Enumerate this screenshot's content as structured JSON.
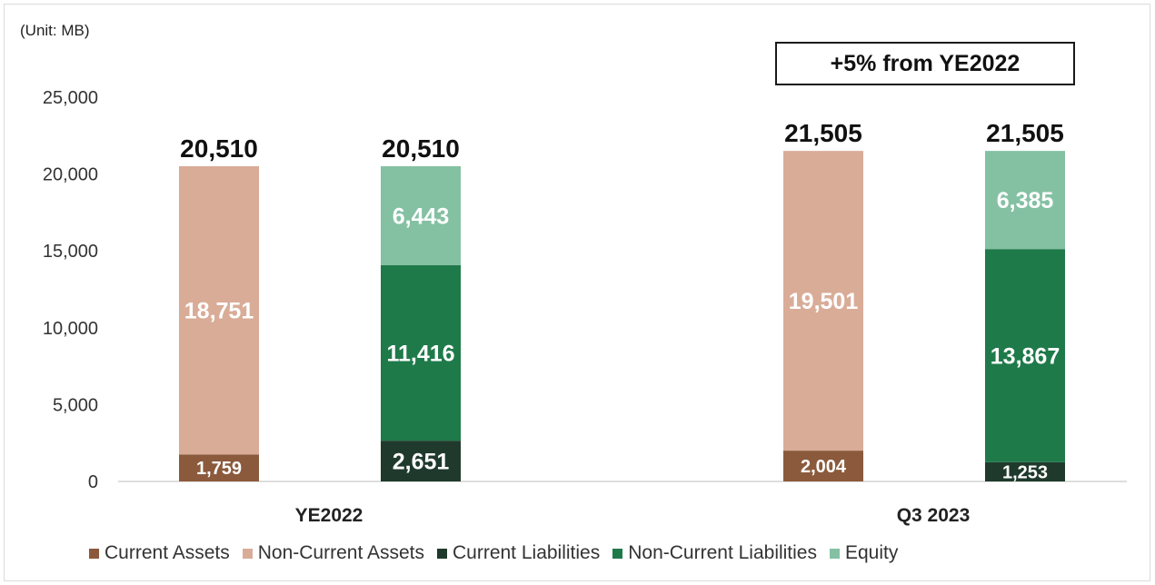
{
  "unit_label": "(Unit: MB)",
  "callout": "+5% from YE2022",
  "colors": {
    "current_assets": "#8b5a3c",
    "non_current_assets": "#d9ac98",
    "current_liabilities": "#1f3a2c",
    "non_current_liabilities": "#1f7a4a",
    "equity": "#84c1a3",
    "axis": "#bdbdbd"
  },
  "chart_data": {
    "type": "bar",
    "stacked": true,
    "categories": [
      "YE2022",
      "Q3 2023"
    ],
    "yticks": [
      "0",
      "5,000",
      "10,000",
      "15,000",
      "20,000",
      "25,000"
    ],
    "ylim": [
      0,
      25000
    ],
    "ylabel": "(Unit: MB)",
    "legend_position": "bottom",
    "bars": [
      {
        "category": "YE2022",
        "stack": "assets",
        "total": 20510,
        "total_label": "20,510",
        "segments": [
          {
            "series": "Current Assets",
            "value": 1759,
            "label": "1,759"
          },
          {
            "series": "Non-Current Assets",
            "value": 18751,
            "label": "18,751"
          }
        ]
      },
      {
        "category": "YE2022",
        "stack": "liabilities_equity",
        "total": 20510,
        "total_label": "20,510",
        "segments": [
          {
            "series": "Current Liabilities",
            "value": 2651,
            "label": "2,651"
          },
          {
            "series": "Non-Current Liabilities",
            "value": 11416,
            "label": "11,416"
          },
          {
            "series": "Equity",
            "value": 6443,
            "label": "6,443"
          }
        ]
      },
      {
        "category": "Q3 2023",
        "stack": "assets",
        "total": 21505,
        "total_label": "21,505",
        "segments": [
          {
            "series": "Current Assets",
            "value": 2004,
            "label": "2,004"
          },
          {
            "series": "Non-Current Assets",
            "value": 19501,
            "label": "19,501"
          }
        ]
      },
      {
        "category": "Q3 2023",
        "stack": "liabilities_equity",
        "total": 21505,
        "total_label": "21,505",
        "segments": [
          {
            "series": "Current Liabilities",
            "value": 1253,
            "label": "1,253"
          },
          {
            "series": "Non-Current Liabilities",
            "value": 13867,
            "label": "13,867"
          },
          {
            "series": "Equity",
            "value": 6385,
            "label": "6,385"
          }
        ]
      }
    ],
    "legend": [
      {
        "name": "Current Assets",
        "color_key": "current_assets"
      },
      {
        "name": "Non-Current Assets",
        "color_key": "non_current_assets"
      },
      {
        "name": "Current Liabilities",
        "color_key": "current_liabilities"
      },
      {
        "name": "Non-Current Liabilities",
        "color_key": "non_current_liabilities"
      },
      {
        "name": "Equity",
        "color_key": "equity"
      }
    ]
  }
}
